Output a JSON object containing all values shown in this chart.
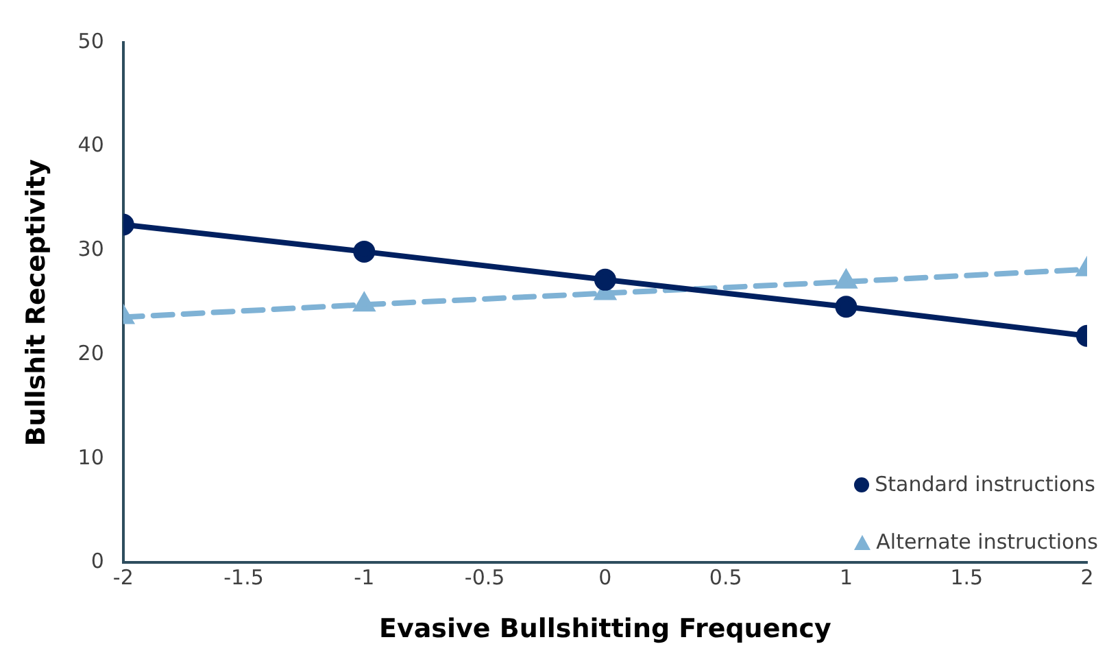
{
  "chart_data": {
    "type": "line",
    "xlabel": "Evasive Bullshitting Frequency",
    "ylabel": "Bullshit Receptivity",
    "x": [
      -2,
      -1,
      0,
      1,
      2
    ],
    "series": [
      {
        "name": "Standard instructions",
        "color": "#002060",
        "values": [
          32.5,
          29.9,
          27.2,
          24.6,
          21.8
        ],
        "marker": "circle",
        "line_style": "solid"
      },
      {
        "name": "Alternate instructions",
        "color": "#7fb2d5",
        "values": [
          23.6,
          24.8,
          25.9,
          27.0,
          28.2
        ],
        "marker": "triangle",
        "line_style": "dashed"
      }
    ],
    "xlim": [
      -2,
      2
    ],
    "xticks": [
      -2,
      -1.5,
      -1,
      -0.5,
      0,
      0.5,
      1,
      1.5,
      2
    ],
    "ylim": [
      0,
      50
    ],
    "yticks": [
      0,
      10,
      20,
      30,
      40,
      50
    ],
    "grid": false,
    "legend": "bottom right"
  }
}
